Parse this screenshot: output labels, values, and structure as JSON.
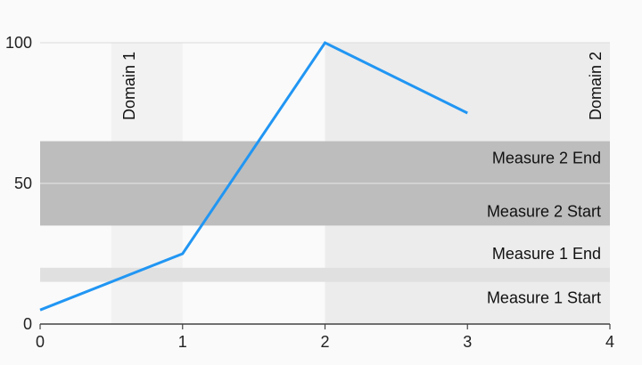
{
  "chart_data": {
    "type": "line",
    "x": [
      0,
      1,
      2,
      3
    ],
    "series": [
      {
        "values": [
          5,
          25,
          100,
          75
        ],
        "color": "#2196f3"
      }
    ],
    "xlim": [
      0,
      4
    ],
    "ylim": [
      0,
      100
    ],
    "x_ticks": [
      "0",
      "1",
      "2",
      "3",
      "4"
    ],
    "y_ticks": [
      "0",
      "50",
      "100"
    ],
    "grid": true,
    "range_annotations": {
      "domain": [
        {
          "label": "Domain 1",
          "start": 0.5,
          "end": 1,
          "color": "#f2f2f2"
        },
        {
          "label": "Domain 2",
          "start": 2,
          "end": 4,
          "color": "#ececec"
        }
      ],
      "measure": [
        {
          "start_label": "Measure 1 Start",
          "end_label": "Measure 1 End",
          "start": 15,
          "end": 20,
          "color": "#e0e0e0"
        },
        {
          "start_label": "Measure 2 Start",
          "end_label": "Measure 2 End",
          "start": 35,
          "end": 65,
          "color": "#bdbdbd"
        }
      ]
    }
  }
}
